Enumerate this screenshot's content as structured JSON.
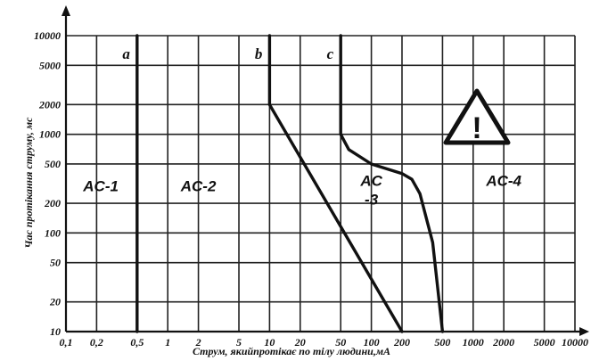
{
  "chart_data": {
    "type": "line",
    "title": "",
    "xlabel": "Струм, якийпротікає по тілу людини,мА",
    "ylabel": "Час протікання струму, мс",
    "x_scale": "log",
    "y_scale": "log",
    "xlim": [
      0.1,
      10000
    ],
    "ylim": [
      10,
      10000
    ],
    "grid": true,
    "x_ticks": [
      "0,1",
      "0,2",
      "0,5",
      "1",
      "2",
      "5",
      "10",
      "20",
      "50",
      "100",
      "200",
      "500",
      "1000",
      "2000",
      "5000",
      "10000"
    ],
    "x_tick_values": [
      0.1,
      0.2,
      0.5,
      1,
      2,
      5,
      10,
      20,
      50,
      100,
      200,
      500,
      1000,
      2000,
      5000,
      10000
    ],
    "y_ticks": [
      "10",
      "20",
      "50",
      "100",
      "200",
      "500",
      "1000",
      "2000",
      "5000",
      "10000"
    ],
    "y_tick_values": [
      10,
      20,
      50,
      100,
      200,
      500,
      1000,
      2000,
      5000,
      10000
    ],
    "series": [
      {
        "name": "a",
        "x": [
          0.5,
          0.5
        ],
        "y": [
          10,
          10000
        ]
      },
      {
        "name": "b",
        "x": [
          10,
          10,
          200
        ],
        "y": [
          10000,
          2000,
          10
        ]
      },
      {
        "name": "c",
        "x": [
          50,
          50,
          60,
          100,
          200,
          250,
          300,
          400,
          500
        ],
        "y": [
          10000,
          1000,
          700,
          500,
          400,
          350,
          250,
          80,
          10
        ]
      }
    ],
    "zones": [
      {
        "label": "AC-1",
        "x": 0.22,
        "y": 300
      },
      {
        "label": "AC-2",
        "x": 2,
        "y": 300
      },
      {
        "label": "AC",
        "x": 100,
        "y": 340
      },
      {
        "label": "-3",
        "x": 100,
        "y": 220
      },
      {
        "label": "AC-4",
        "x": 2000,
        "y": 340
      }
    ],
    "annotation": "!"
  }
}
